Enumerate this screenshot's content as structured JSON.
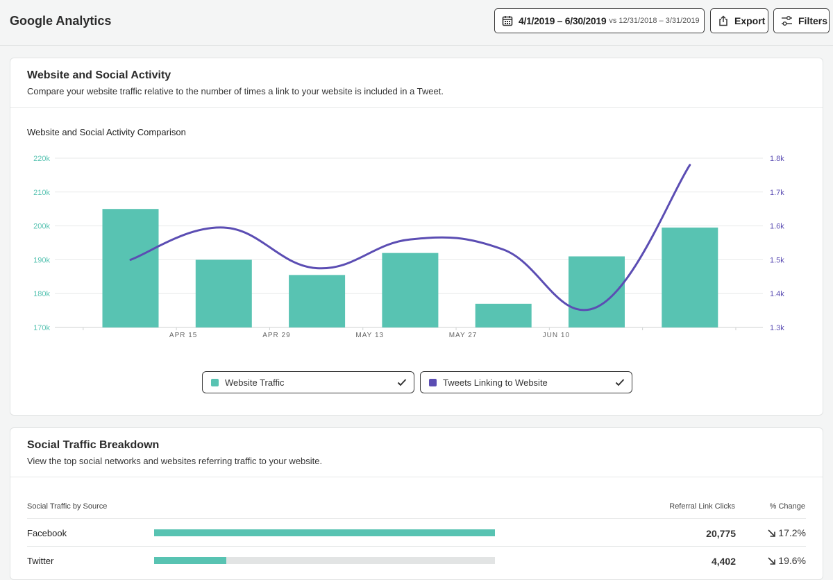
{
  "header": {
    "title": "Google Analytics",
    "date_range": "4/1/2019 – 6/30/2019",
    "date_compare": "vs 12/31/2018 – 3/31/2019",
    "export_label": "Export",
    "filters_label": "Filters"
  },
  "activity_card": {
    "title": "Website and Social Activity",
    "subtitle": "Compare your website traffic relative to the number of times a link to your website is included in a Tweet."
  },
  "chart_data": {
    "type": "bar",
    "title": "Website and Social Activity Comparison",
    "x_tick_labels": [
      "APR 15",
      "APR 29",
      "MAY 13",
      "MAY 27",
      "JUN 10"
    ],
    "y_left": {
      "ticks": [
        "220k",
        "210k",
        "200k",
        "190k",
        "180k",
        "170k"
      ],
      "range": [
        170000,
        220000
      ]
    },
    "y_right": {
      "ticks": [
        "1.8k",
        "1.7k",
        "1.6k",
        "1.5k",
        "1.4k",
        "1.3k"
      ],
      "range": [
        1300,
        1800
      ]
    },
    "grid": true,
    "series": [
      {
        "name": "Website Traffic",
        "kind": "bar",
        "axis": "left",
        "color": "#58c3b2",
        "values": [
          205000,
          190000,
          185500,
          192000,
          177000,
          191000,
          199500
        ]
      },
      {
        "name": "Tweets Linking to Website",
        "kind": "line",
        "axis": "right",
        "color": "#5b4db3",
        "values": [
          1500,
          1595,
          1475,
          1560,
          1530,
          1360,
          1780
        ]
      }
    ]
  },
  "legend": {
    "traffic_label": "Website Traffic",
    "tweets_label": "Tweets Linking to Website"
  },
  "social_card": {
    "title": "Social Traffic Breakdown",
    "subtitle": "View the top social networks and websites referring traffic to your website.",
    "col_source": "Social Traffic by Source",
    "col_clicks": "Referral Link Clicks",
    "col_change": "% Change",
    "rows": [
      {
        "source": "Facebook",
        "clicks": "20,775",
        "change": "17.2%",
        "bar_fraction": 1.0
      },
      {
        "source": "Twitter",
        "clicks": "4,402",
        "change": "19.6%",
        "bar_fraction": 0.212
      }
    ]
  }
}
